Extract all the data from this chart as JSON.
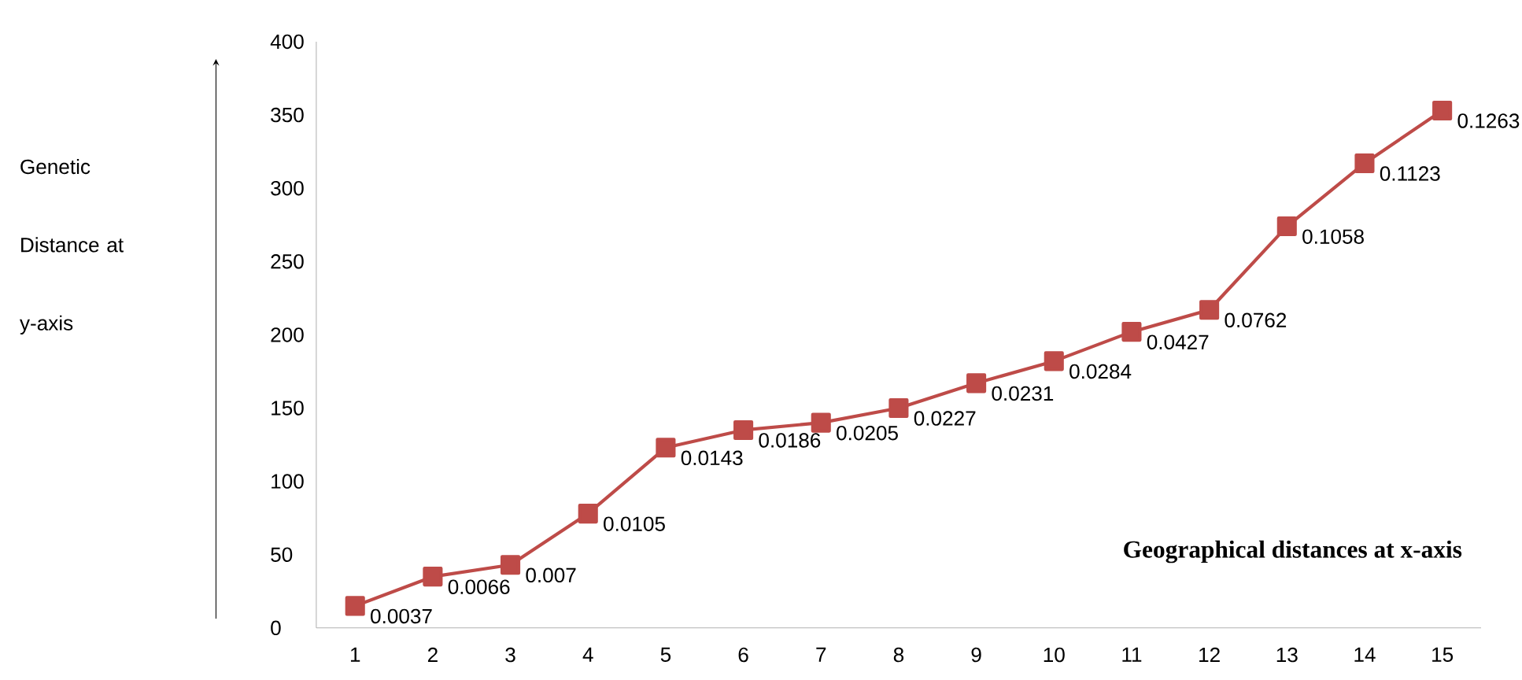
{
  "chart_data": {
    "type": "line",
    "xlabel": "Geographical distances at x-axis",
    "ylabel": "Genetic Distance at y-axis",
    "categories": [
      "1",
      "2",
      "3",
      "4",
      "5",
      "6",
      "7",
      "8",
      "9",
      "10",
      "11",
      "12",
      "13",
      "14",
      "15"
    ],
    "values": [
      15,
      35,
      43,
      78,
      123,
      135,
      140,
      150,
      167,
      182,
      202,
      217,
      274,
      317,
      353
    ],
    "annotations": [
      {
        "text": "0.0037",
        "x": "1",
        "y": 15
      },
      {
        "text": "0.0066",
        "x": "2",
        "y": 35
      },
      {
        "text": "0.007",
        "x": "3",
        "y": 43
      },
      {
        "text": "0.0105",
        "x": "4",
        "y": 78
      },
      {
        "text": "0.0143",
        "x": "5",
        "y": 123
      },
      {
        "text": "0.0186",
        "x": "6",
        "y": 135
      },
      {
        "text": "0.0205",
        "x": "7",
        "y": 140
      },
      {
        "text": "0.0227",
        "x": "8",
        "y": 150
      },
      {
        "text": "0.0231",
        "x": "9",
        "y": 167
      },
      {
        "text": "0.0284",
        "x": "10",
        "y": 182
      },
      {
        "text": "0.0427",
        "x": "11",
        "y": 202
      },
      {
        "text": "0.0762",
        "x": "12",
        "y": 217
      },
      {
        "text": "0.1058",
        "x": "13",
        "y": 274
      },
      {
        "text": "0.1123",
        "x": "14",
        "y": 317
      },
      {
        "text": "0.1263",
        "x": "15",
        "y": 353
      }
    ],
    "color": "#be4b48",
    "marker": "square",
    "ylim": [
      0,
      400
    ],
    "yticks": [
      0,
      50,
      100,
      150,
      200,
      250,
      300,
      350,
      400
    ]
  }
}
